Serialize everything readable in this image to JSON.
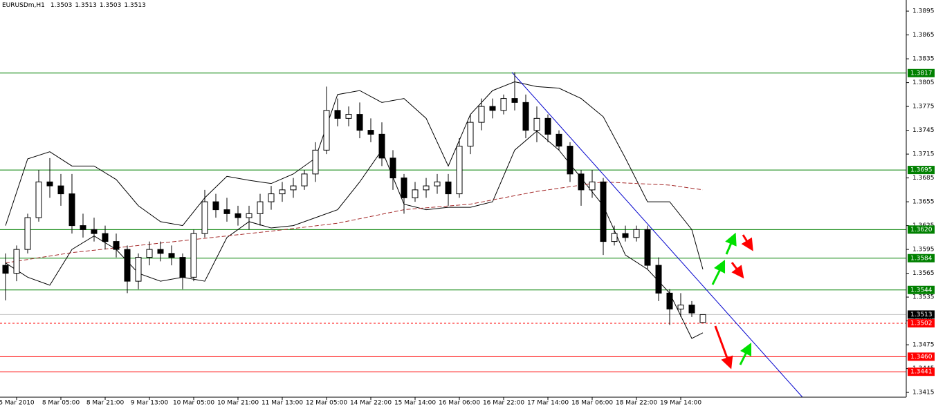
{
  "chart_data": {
    "type": "candlestick",
    "title": "EURUSDm,H1",
    "title_values": [
      1.3503,
      1.3513,
      1.3503,
      1.3513
    ],
    "categories": [
      null,
      "5 Mar 2010",
      null,
      null,
      null,
      "8 Mar 05:00",
      null,
      null,
      null,
      "8 Mar 21:00",
      null,
      null,
      null,
      "9 Mar 13:00",
      null,
      null,
      null,
      "10 Mar 05:00",
      null,
      null,
      null,
      "10 Mar 21:00",
      null,
      null,
      null,
      "11 Mar 13:00",
      null,
      null,
      null,
      "12 Mar 05:00",
      null,
      null,
      null,
      "14 Mar 22:00",
      null,
      null,
      null,
      "15 Mar 14:00",
      null,
      null,
      null,
      "16 Mar 06:00",
      null,
      null,
      null,
      "16 Mar 22:00",
      null,
      null,
      null,
      "17 Mar 14:00",
      null,
      null,
      null,
      "18 Mar 06:00",
      null,
      null,
      null,
      "18 Mar 22:00",
      null,
      null,
      null,
      "19 Mar 14:00",
      null,
      null
    ],
    "open": [
      1.3575,
      1.3565,
      1.3595,
      1.3635,
      1.368,
      1.3675,
      1.3665,
      1.3625,
      1.362,
      1.3615,
      1.3605,
      1.3595,
      1.3555,
      1.3585,
      1.3595,
      1.359,
      1.3585,
      1.356,
      1.3615,
      1.3655,
      1.3645,
      1.364,
      1.3635,
      1.364,
      1.3655,
      1.3665,
      1.367,
      1.3675,
      1.369,
      1.372,
      1.377,
      1.376,
      1.3765,
      1.3745,
      1.374,
      1.371,
      1.3685,
      1.366,
      1.367,
      1.3675,
      1.368,
      1.3665,
      1.3725,
      1.3755,
      1.3775,
      1.377,
      1.3785,
      1.378,
      1.3745,
      1.376,
      1.374,
      1.3725,
      1.369,
      1.367,
      1.368,
      1.3605,
      1.3615,
      1.361,
      1.362,
      1.3575,
      1.354,
      1.352,
      1.3525,
      1.3503
    ],
    "high": [
      1.359,
      1.36,
      1.364,
      1.3695,
      1.371,
      1.369,
      1.369,
      1.364,
      1.3635,
      1.3625,
      1.3615,
      1.36,
      1.359,
      1.3605,
      1.3605,
      1.36,
      1.359,
      1.362,
      1.367,
      1.3665,
      1.366,
      1.365,
      1.365,
      1.3665,
      1.3675,
      1.368,
      1.3685,
      1.3695,
      1.373,
      1.38,
      1.3785,
      1.3775,
      1.378,
      1.376,
      1.3755,
      1.372,
      1.369,
      1.368,
      1.3685,
      1.369,
      1.369,
      1.3735,
      1.3765,
      1.3785,
      1.3785,
      1.379,
      1.3818,
      1.379,
      1.3775,
      1.3765,
      1.3745,
      1.373,
      1.3695,
      1.3695,
      1.3685,
      1.3625,
      1.3625,
      1.3625,
      1.3625,
      1.3585,
      1.3545,
      1.354,
      1.353,
      1.3513
    ],
    "low": [
      1.3531,
      1.3555,
      1.359,
      1.363,
      1.366,
      1.365,
      1.3615,
      1.361,
      1.3605,
      1.3595,
      1.3585,
      1.354,
      1.3545,
      1.3575,
      1.358,
      1.3575,
      1.3545,
      1.3555,
      1.361,
      1.3635,
      1.363,
      1.3625,
      1.362,
      1.3625,
      1.3645,
      1.3655,
      1.366,
      1.367,
      1.368,
      1.3715,
      1.375,
      1.375,
      1.3735,
      1.373,
      1.37,
      1.367,
      1.364,
      1.3655,
      1.366,
      1.3665,
      1.365,
      1.366,
      1.3715,
      1.3745,
      1.376,
      1.3765,
      1.377,
      1.3735,
      1.373,
      1.373,
      1.372,
      1.368,
      1.365,
      1.366,
      1.3588,
      1.36,
      1.3605,
      1.3605,
      1.357,
      1.353,
      1.35,
      1.351,
      1.351,
      1.3503
    ],
    "close": [
      1.3565,
      1.3595,
      1.3635,
      1.368,
      1.3675,
      1.3665,
      1.3625,
      1.362,
      1.3615,
      1.3605,
      1.3595,
      1.3555,
      1.3585,
      1.3595,
      1.359,
      1.3585,
      1.356,
      1.3615,
      1.3655,
      1.3645,
      1.364,
      1.3635,
      1.364,
      1.3655,
      1.3665,
      1.367,
      1.3675,
      1.369,
      1.372,
      1.377,
      1.376,
      1.3765,
      1.3745,
      1.374,
      1.371,
      1.3685,
      1.366,
      1.367,
      1.3675,
      1.368,
      1.3665,
      1.3725,
      1.3755,
      1.3775,
      1.377,
      1.3785,
      1.378,
      1.3745,
      1.376,
      1.374,
      1.3725,
      1.369,
      1.367,
      1.368,
      1.3605,
      1.3615,
      1.361,
      1.362,
      1.3575,
      1.354,
      1.352,
      1.3525,
      1.3515,
      1.3513
    ],
    "ylim": [
      1.3409,
      1.3909
    ],
    "yticks": [
      1.3895,
      1.3865,
      1.3835,
      1.3805,
      1.3775,
      1.3745,
      1.3715,
      1.3685,
      1.3655,
      1.3625,
      1.3595,
      1.3565,
      1.3535,
      1.3505,
      1.3475,
      1.3445,
      1.3415
    ],
    "overlays": [
      {
        "color": "#000000",
        "dashed": false,
        "x": [
          0,
          2,
          4,
          6,
          8,
          10,
          12,
          14,
          16,
          18,
          20,
          22,
          24,
          26,
          28,
          30,
          32,
          34,
          36,
          38,
          40,
          42,
          44,
          46,
          48,
          50,
          52,
          54,
          56,
          58,
          60,
          62,
          63
        ],
        "values": [
          1.3625,
          1.3709,
          1.3718,
          1.37,
          1.37,
          1.3683,
          1.365,
          1.363,
          1.3625,
          1.366,
          1.3687,
          1.3682,
          1.3678,
          1.369,
          1.371,
          1.379,
          1.3795,
          1.378,
          1.3785,
          1.376,
          1.37,
          1.3765,
          1.3795,
          1.3806,
          1.38,
          1.3798,
          1.3785,
          1.3762,
          1.371,
          1.3655,
          1.3655,
          1.362,
          1.357
        ]
      },
      {
        "color": "#000000",
        "dashed": false,
        "x": [
          0,
          2,
          4,
          6,
          8,
          10,
          12,
          14,
          16,
          18,
          20,
          22,
          24,
          26,
          28,
          30,
          32,
          34,
          36,
          38,
          40,
          42,
          44,
          46,
          48,
          50,
          52,
          54,
          56,
          58,
          60,
          62,
          63
        ],
        "values": [
          1.3578,
          1.356,
          1.355,
          1.3595,
          1.3612,
          1.3595,
          1.3565,
          1.3555,
          1.356,
          1.3555,
          1.361,
          1.363,
          1.3622,
          1.3625,
          1.3635,
          1.3645,
          1.368,
          1.372,
          1.3652,
          1.3645,
          1.3648,
          1.3648,
          1.3655,
          1.372,
          1.3744,
          1.372,
          1.3685,
          1.365,
          1.3588,
          1.357,
          1.354,
          1.3483,
          1.349
        ]
      },
      {
        "color": "#a52a2a",
        "dashed": true,
        "x": [
          0,
          6,
          12,
          18,
          24,
          30,
          36,
          42,
          48,
          54,
          60,
          63
        ],
        "values": [
          1.3578,
          1.3591,
          1.36,
          1.3609,
          1.3618,
          1.3628,
          1.3645,
          1.3652,
          1.3668,
          1.368,
          1.3676,
          1.367
        ]
      },
      {
        "color": "#0000cd",
        "dashed": false,
        "x": [
          45.75,
          72
        ],
        "values": [
          1.3818,
          1.3409
        ]
      }
    ],
    "levels": [
      {
        "price": 1.3817,
        "color": "#008000",
        "box": "#008000",
        "dashed": false
      },
      {
        "price": 1.3695,
        "color": "#008000",
        "box": "#008000",
        "dashed": false
      },
      {
        "price": {
          "value": 1.362,
          "label": "1.3620"
        },
        "color": "#008000",
        "box": "#008000",
        "dashed": false
      },
      {
        "price": 1.3584,
        "color": "#008000",
        "box": "#008000",
        "dashed": false
      },
      {
        "price": 1.3544,
        "color": "#008000",
        "box": "#008000",
        "dashed": false
      },
      {
        "price": 1.3513,
        "color": "#c0c0c0",
        "box": "#000000",
        "dashed": false
      },
      {
        "price": 1.3502,
        "color": "#ff0000",
        "box": "#ff0000",
        "dashed": true
      },
      {
        "price": {
          "value": 1.346,
          "label": "1.3460"
        },
        "color": "#ff0000",
        "box": "#ff0000",
        "dashed": false
      },
      {
        "price": 1.3441,
        "color": "#ff0000",
        "box": "#ff0000",
        "dashed": false
      }
    ]
  }
}
